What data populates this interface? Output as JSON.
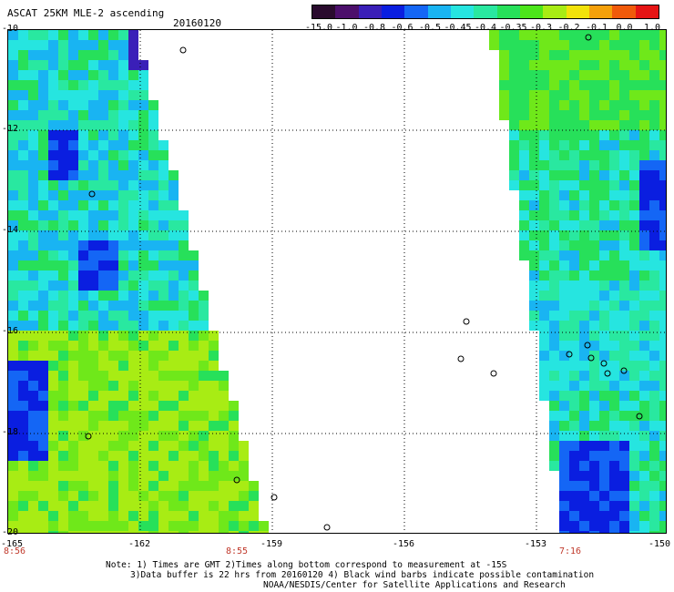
{
  "header": {
    "title": "ASCAT 25KM MLE-2 ascending",
    "date": "20160120"
  },
  "colorbar": {
    "labels": [
      "-15.0",
      "-1.0",
      "-0.8",
      "-0.6",
      "-0.5",
      "-0.45",
      "-0.4",
      "-0.35",
      "-0.3",
      "-0.2",
      "-0.1",
      "0.0",
      "1.0"
    ],
    "colors": [
      "#2a0b2e",
      "#4c0f6b",
      "#3a1fb8",
      "#0a1ee0",
      "#1466f5",
      "#19b4f2",
      "#26e5e0",
      "#29e8a0",
      "#27e05a",
      "#4ce61a",
      "#a8ec14",
      "#f2e20a",
      "#f5a00a",
      "#f05a0a",
      "#e61414"
    ]
  },
  "axes": {
    "lat_labels": [
      "-10",
      "-12",
      "-14",
      "-16",
      "-18",
      "-20"
    ],
    "lon_labels": [
      "-165",
      "-162",
      "-159",
      "-156",
      "-153",
      "-150"
    ],
    "time_labels": [
      "8:56",
      "8:55",
      "7:16"
    ]
  },
  "notes": {
    "line1": "Note: 1) Times are GMT 2)Times along bottom correspond to measurement at -15S",
    "line2": "3)Data buffer is 22 hrs from 20160120 4) Black wind barbs indicate possible contamination",
    "line3": "NOAA/NESDIS/Center for Satellite Applications and Research"
  }
}
